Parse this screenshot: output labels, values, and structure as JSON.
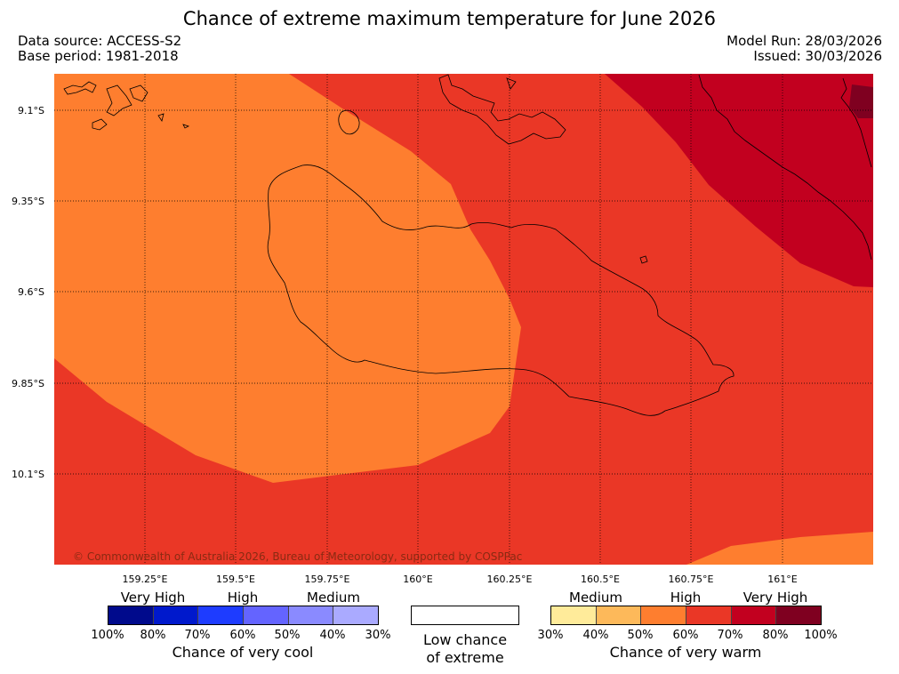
{
  "title": "Chance of extreme maximum temperature for June 2026",
  "data_source": "Data source: ACCESS-S2",
  "base_period": "Base period: 1981-2018",
  "model_run": "Model Run: 28/03/2026",
  "issued": "Issued: 30/03/2026",
  "copyright": "© Commonwealth of Australia 2026, Bureau of Meteorology, supported by COSPPac",
  "lat_labels": [
    "9.1°S",
    "9.35°S",
    "9.6°S",
    "9.85°S",
    "10.1°S"
  ],
  "lon_labels": [
    "159.25°E",
    "159.5°E",
    "159.75°E",
    "160°E",
    "160.25°E",
    "160.5°E",
    "160.75°E",
    "161°E"
  ],
  "legend": {
    "cool": {
      "categories": [
        "Very High",
        "High",
        "Medium"
      ],
      "percents": [
        "100%",
        "80%",
        "70%",
        "60%",
        "50%",
        "40%",
        "30%"
      ],
      "colors": [
        "#000a8c",
        "#0019cc",
        "#1e3cff",
        "#6464ff",
        "#8a8aff",
        "#aaaaff"
      ],
      "caption": "Chance of very cool"
    },
    "neutral": {
      "caption_line1": "Low chance",
      "caption_line2": "of extreme"
    },
    "warm": {
      "categories": [
        "Medium",
        "High",
        "Very High"
      ],
      "percents": [
        "30%",
        "40%",
        "50%",
        "60%",
        "70%",
        "80%",
        "100%"
      ],
      "colors": [
        "#ffeb9a",
        "#fdb95a",
        "#fe7e2f",
        "#ea3726",
        "#c2001f",
        "#7f0020"
      ],
      "caption": "Chance of very warm"
    }
  },
  "map_colors": {
    "band_50_60": "#fe7e2f",
    "band_60_70": "#ea3726",
    "band_70_80": "#c2001f",
    "band_80_100": "#7f0020"
  }
}
